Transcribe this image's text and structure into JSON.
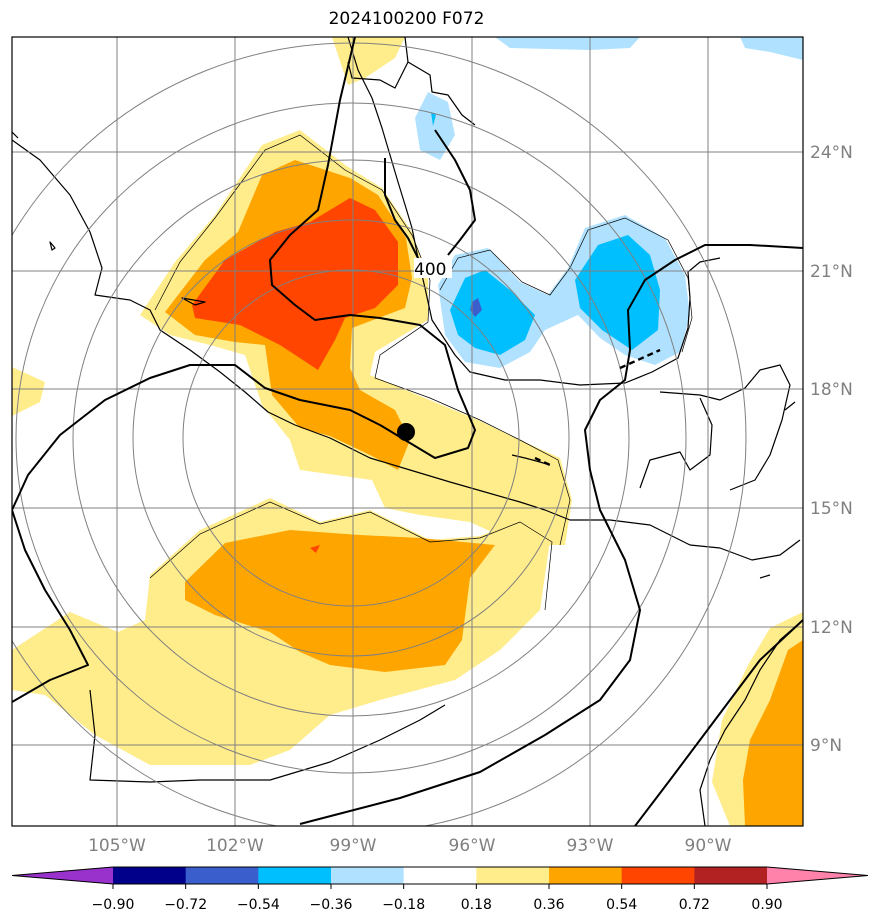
{
  "title": "2024100200 F072",
  "map": {
    "lon_labels": [
      "105°W",
      "102°W",
      "99°W",
      "96°W",
      "93°W",
      "90°W"
    ],
    "lat_labels": [
      "24°N",
      "21°N",
      "18°N",
      "15°N",
      "12°N",
      "9°N"
    ],
    "contour_label": "400",
    "center_marker": "storm-center-dot"
  },
  "colorbar": {
    "ticks": [
      "−0.90",
      "−0.72",
      "−0.54",
      "−0.36",
      "−0.18",
      "0.18",
      "0.36",
      "0.54",
      "0.72",
      "0.90"
    ],
    "colors": [
      "#9932cc",
      "#00008b",
      "#3a5fcd",
      "#00bfff",
      "#b0e2ff",
      "#ffffff",
      "#ffec8b",
      "#ffa500",
      "#ff4500",
      "#b22222",
      "#ff82ab"
    ]
  }
}
